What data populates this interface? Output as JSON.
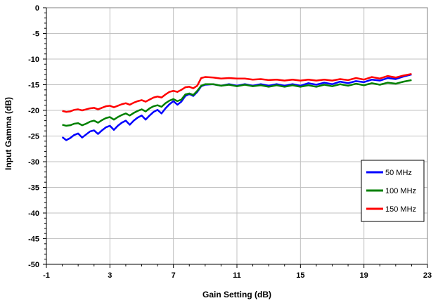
{
  "chart_data": {
    "type": "line",
    "title": "",
    "xlabel": "Gain Setting (dB)",
    "ylabel": "Input Gamma (dB)",
    "xlim": [
      -1,
      23
    ],
    "ylim": [
      -50,
      0
    ],
    "xticks": [
      -1,
      3,
      7,
      11,
      15,
      19,
      23
    ],
    "yticks": [
      0,
      -5,
      -10,
      -15,
      -20,
      -25,
      -30,
      -35,
      -40,
      -45,
      -50
    ],
    "grid": true,
    "legend_position": "right",
    "series": [
      {
        "name": "50 MHz",
        "color": "#0000ff",
        "points": [
          [
            0,
            -25.2
          ],
          [
            0.25,
            -25.8
          ],
          [
            0.5,
            -25.4
          ],
          [
            0.75,
            -24.8
          ],
          [
            1,
            -24.5
          ],
          [
            1.25,
            -25.3
          ],
          [
            1.5,
            -24.7
          ],
          [
            1.75,
            -24.1
          ],
          [
            2,
            -23.9
          ],
          [
            2.25,
            -24.6
          ],
          [
            2.5,
            -23.9
          ],
          [
            2.75,
            -23.3
          ],
          [
            3,
            -23.0
          ],
          [
            3.25,
            -23.8
          ],
          [
            3.5,
            -23.0
          ],
          [
            3.75,
            -22.4
          ],
          [
            4,
            -22.0
          ],
          [
            4.25,
            -22.8
          ],
          [
            4.5,
            -22.0
          ],
          [
            4.75,
            -21.4
          ],
          [
            5,
            -21.0
          ],
          [
            5.25,
            -21.8
          ],
          [
            5.5,
            -21.0
          ],
          [
            5.75,
            -20.3
          ],
          [
            6,
            -19.9
          ],
          [
            6.25,
            -20.6
          ],
          [
            6.5,
            -19.6
          ],
          [
            6.75,
            -18.8
          ],
          [
            7,
            -18.2
          ],
          [
            7.25,
            -18.9
          ],
          [
            7.5,
            -18.3
          ],
          [
            7.75,
            -17.2
          ],
          [
            8,
            -16.8
          ],
          [
            8.25,
            -17.2
          ],
          [
            8.5,
            -16.4
          ],
          [
            8.75,
            -15.3
          ],
          [
            9,
            -15.0
          ],
          [
            9.5,
            -14.9
          ],
          [
            10,
            -15.2
          ],
          [
            10.5,
            -14.9
          ],
          [
            11,
            -15.2
          ],
          [
            11.5,
            -14.9
          ],
          [
            12,
            -15.2
          ],
          [
            12.5,
            -14.9
          ],
          [
            13,
            -15.2
          ],
          [
            13.5,
            -14.9
          ],
          [
            14,
            -15.2
          ],
          [
            14.5,
            -14.9
          ],
          [
            15,
            -15.2
          ],
          [
            15.5,
            -14.7
          ],
          [
            16,
            -15.0
          ],
          [
            16.5,
            -14.6
          ],
          [
            17,
            -14.9
          ],
          [
            17.5,
            -14.4
          ],
          [
            18,
            -14.7
          ],
          [
            18.5,
            -14.3
          ],
          [
            19,
            -14.5
          ],
          [
            19.5,
            -14.0
          ],
          [
            20,
            -14.2
          ],
          [
            20.5,
            -13.7
          ],
          [
            21,
            -13.9
          ],
          [
            21.5,
            -13.4
          ],
          [
            22,
            -13.0
          ]
        ]
      },
      {
        "name": "100 MHz",
        "color": "#008000",
        "points": [
          [
            0,
            -22.8
          ],
          [
            0.25,
            -23.0
          ],
          [
            0.5,
            -22.9
          ],
          [
            0.75,
            -22.6
          ],
          [
            1,
            -22.5
          ],
          [
            1.25,
            -22.9
          ],
          [
            1.5,
            -22.6
          ],
          [
            1.75,
            -22.2
          ],
          [
            2,
            -22.0
          ],
          [
            2.25,
            -22.4
          ],
          [
            2.5,
            -21.9
          ],
          [
            2.75,
            -21.5
          ],
          [
            3,
            -21.3
          ],
          [
            3.25,
            -21.8
          ],
          [
            3.5,
            -21.3
          ],
          [
            3.75,
            -20.9
          ],
          [
            4,
            -20.6
          ],
          [
            4.25,
            -21.0
          ],
          [
            4.5,
            -20.5
          ],
          [
            4.75,
            -20.1
          ],
          [
            5,
            -19.8
          ],
          [
            5.25,
            -20.2
          ],
          [
            5.5,
            -19.6
          ],
          [
            5.75,
            -19.2
          ],
          [
            6,
            -19.0
          ],
          [
            6.25,
            -19.3
          ],
          [
            6.5,
            -18.6
          ],
          [
            6.75,
            -18.1
          ],
          [
            7,
            -17.8
          ],
          [
            7.25,
            -18.2
          ],
          [
            7.5,
            -17.9
          ],
          [
            7.75,
            -16.9
          ],
          [
            8,
            -16.7
          ],
          [
            8.25,
            -17.0
          ],
          [
            8.5,
            -16.2
          ],
          [
            8.75,
            -15.2
          ],
          [
            9,
            -14.9
          ],
          [
            9.5,
            -14.9
          ],
          [
            10,
            -15.2
          ],
          [
            10.5,
            -15.0
          ],
          [
            11,
            -15.3
          ],
          [
            11.5,
            -15.0
          ],
          [
            12,
            -15.3
          ],
          [
            12.5,
            -15.1
          ],
          [
            13,
            -15.4
          ],
          [
            13.5,
            -15.1
          ],
          [
            14,
            -15.4
          ],
          [
            14.5,
            -15.1
          ],
          [
            15,
            -15.4
          ],
          [
            15.5,
            -15.1
          ],
          [
            16,
            -15.4
          ],
          [
            16.5,
            -15.0
          ],
          [
            17,
            -15.3
          ],
          [
            17.5,
            -14.9
          ],
          [
            18,
            -15.2
          ],
          [
            18.5,
            -14.8
          ],
          [
            19,
            -15.1
          ],
          [
            19.5,
            -14.7
          ],
          [
            20,
            -15.0
          ],
          [
            20.5,
            -14.6
          ],
          [
            21,
            -14.8
          ],
          [
            21.5,
            -14.4
          ],
          [
            22,
            -14.1
          ]
        ]
      },
      {
        "name": "150 MHz",
        "color": "#ff0000",
        "points": [
          [
            0,
            -20.1
          ],
          [
            0.25,
            -20.3
          ],
          [
            0.5,
            -20.2
          ],
          [
            0.75,
            -19.9
          ],
          [
            1,
            -19.8
          ],
          [
            1.25,
            -20.0
          ],
          [
            1.5,
            -19.8
          ],
          [
            1.75,
            -19.6
          ],
          [
            2,
            -19.5
          ],
          [
            2.25,
            -19.8
          ],
          [
            2.5,
            -19.5
          ],
          [
            2.75,
            -19.2
          ],
          [
            3,
            -19.1
          ],
          [
            3.25,
            -19.4
          ],
          [
            3.5,
            -19.1
          ],
          [
            3.75,
            -18.8
          ],
          [
            4,
            -18.6
          ],
          [
            4.25,
            -18.9
          ],
          [
            4.5,
            -18.5
          ],
          [
            4.75,
            -18.2
          ],
          [
            5,
            -18.0
          ],
          [
            5.25,
            -18.3
          ],
          [
            5.5,
            -17.9
          ],
          [
            5.75,
            -17.5
          ],
          [
            6,
            -17.3
          ],
          [
            6.25,
            -17.5
          ],
          [
            6.5,
            -16.9
          ],
          [
            6.75,
            -16.4
          ],
          [
            7,
            -16.2
          ],
          [
            7.25,
            -16.4
          ],
          [
            7.5,
            -16.0
          ],
          [
            7.75,
            -15.5
          ],
          [
            8,
            -15.4
          ],
          [
            8.25,
            -15.7
          ],
          [
            8.5,
            -15.2
          ],
          [
            8.75,
            -13.7
          ],
          [
            9,
            -13.5
          ],
          [
            9.5,
            -13.6
          ],
          [
            10,
            -13.8
          ],
          [
            10.5,
            -13.7
          ],
          [
            11,
            -13.8
          ],
          [
            11.5,
            -13.8
          ],
          [
            12,
            -14.0
          ],
          [
            12.5,
            -13.9
          ],
          [
            13,
            -14.1
          ],
          [
            13.5,
            -14.0
          ],
          [
            14,
            -14.2
          ],
          [
            14.5,
            -14.0
          ],
          [
            15,
            -14.2
          ],
          [
            15.5,
            -14.0
          ],
          [
            16,
            -14.2
          ],
          [
            16.5,
            -14.0
          ],
          [
            17,
            -14.2
          ],
          [
            17.5,
            -13.9
          ],
          [
            18,
            -14.1
          ],
          [
            18.5,
            -13.7
          ],
          [
            19,
            -14.0
          ],
          [
            19.5,
            -13.5
          ],
          [
            20,
            -13.8
          ],
          [
            20.5,
            -13.3
          ],
          [
            21,
            -13.6
          ],
          [
            21.5,
            -13.2
          ],
          [
            22,
            -12.9
          ]
        ]
      }
    ]
  }
}
